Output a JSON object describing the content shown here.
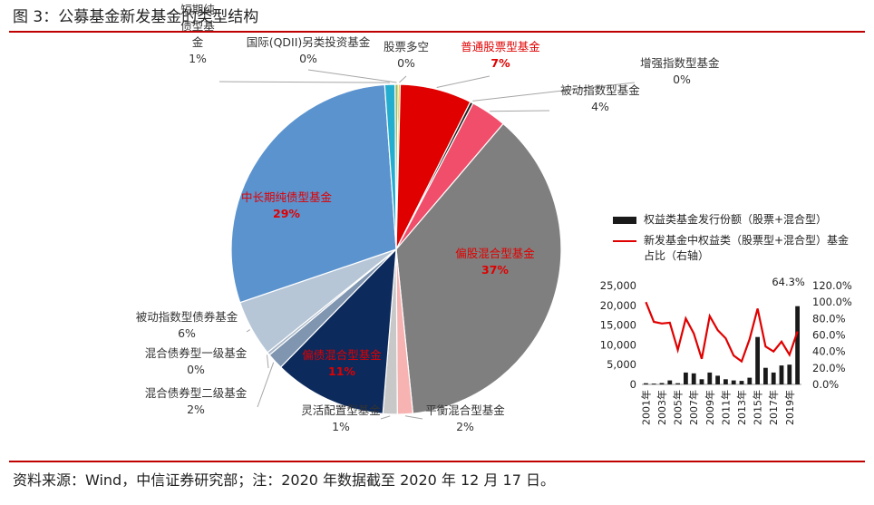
{
  "figure_title": "图 3：公募基金新发基金的类型结构",
  "footnote": "资料来源：Wind，中信证券研究部；注：2020 年数据截至 2020 年 12 月 17 日。",
  "chart_data": [
    {
      "type": "pie",
      "title": "",
      "slices": [
        {
          "label": "股票多空",
          "label_lines": [
            "股票多空"
          ],
          "pct_label": "0%",
          "value": 0.2,
          "color": "#d9b200",
          "label_color": "#333333"
        },
        {
          "label": "普通股票型基金",
          "label_lines": [
            "普通股票型基金"
          ],
          "pct_label": "7%",
          "value": 7,
          "color": "#e00000",
          "label_color": "#e00000"
        },
        {
          "label": "增强指数型基金",
          "label_lines": [
            "增强指数型基金"
          ],
          "pct_label": "0%",
          "value": 0.3,
          "color": "#222222",
          "label_color": "#333333"
        },
        {
          "label": "被动指数型基金",
          "label_lines": [
            "被动指数型基金"
          ],
          "pct_label": "4%",
          "value": 3.5,
          "color": "#f04e6a",
          "label_color": "#333333"
        },
        {
          "label": "偏股混合型基金",
          "label_lines": [
            "偏股混合型基金"
          ],
          "pct_label": "37%",
          "value": 37,
          "color": "#7f7f7f",
          "label_color": "#e00000"
        },
        {
          "label": "平衡混合型基金",
          "label_lines": [
            "平衡混合型基金"
          ],
          "pct_label": "2%",
          "value": 1.5,
          "color": "#f7b2b2",
          "label_color": "#333333"
        },
        {
          "label": "灵活配置型基金",
          "label_lines": [
            "灵活配置型基金"
          ],
          "pct_label": "1%",
          "value": 1.4,
          "color": "#c8c8c8",
          "label_color": "#333333"
        },
        {
          "label": "偏债混合型基金",
          "label_lines": [
            "偏债混合型基金"
          ],
          "pct_label": "11%",
          "value": 11,
          "color": "#0c2a5c",
          "label_color": "#e00000"
        },
        {
          "label": "混合债券型二级基金",
          "label_lines": [
            "混合债券型二级基金"
          ],
          "pct_label": "2%",
          "value": 1.6,
          "color": "#7f95b0",
          "label_color": "#333333"
        },
        {
          "label": "混合债券型一级基金",
          "label_lines": [
            "混合债券型一级基金"
          ],
          "pct_label": "0%",
          "value": 0.3,
          "color": "#a9b8c8",
          "label_color": "#333333"
        },
        {
          "label": "被动指数型债券基金",
          "label_lines": [
            "被动指数型债券基金"
          ],
          "pct_label": "6%",
          "value": 5.5,
          "color": "#b6c6d6",
          "label_color": "#333333"
        },
        {
          "label": "中长期纯债型基金",
          "label_lines": [
            "中长期纯债型基金"
          ],
          "pct_label": "29%",
          "value": 29,
          "color": "#5b93cf",
          "label_color": "#e00000"
        },
        {
          "label": "短期纯债型基金",
          "label_lines": [
            "短期纯",
            "债型基",
            "金"
          ],
          "pct_label": "1%",
          "value": 1.0,
          "color": "#23aed0",
          "label_color": "#333333"
        },
        {
          "label": "国际(QDII)另类投资基金",
          "label_lines": [
            "国际(QDII)另类投资基金"
          ],
          "pct_label": "0%",
          "value": 0.3,
          "color": "#9bbb59",
          "label_color": "#333333"
        }
      ]
    },
    {
      "type": "bar+line",
      "title": "",
      "categories": [
        "2001年",
        "2002年",
        "2003年",
        "2004年",
        "2005年",
        "2006年",
        "2007年",
        "2008年",
        "2009年",
        "2010年",
        "2011年",
        "2012年",
        "2013年",
        "2014年",
        "2015年",
        "2016年",
        "2017年",
        "2018年",
        "2019年",
        "2020年"
      ],
      "x_tick_labels": [
        "2001年",
        "2003年",
        "2005年",
        "2007年",
        "2009年",
        "2011年",
        "2013年",
        "2015年",
        "2017年",
        "2019年"
      ],
      "series": [
        {
          "name": "权益类基金发行份额（股票+混合型）",
          "type": "bar",
          "axis": "left",
          "values": [
            300,
            200,
            350,
            1000,
            300,
            3000,
            2800,
            1300,
            3000,
            2200,
            1300,
            1000,
            900,
            1700,
            12000,
            4200,
            3000,
            4800,
            5000,
            19800
          ]
        },
        {
          "name": "新发基金中权益类（股票型+混合型）基金占比（右轴）",
          "type": "line",
          "axis": "right",
          "values": [
            100,
            76,
            74,
            75,
            42,
            80,
            62,
            31,
            83,
            66,
            56,
            35,
            28,
            55,
            92,
            46,
            40,
            52,
            36,
            64.3
          ]
        }
      ],
      "y_left": {
        "min": 0,
        "max": 25000,
        "ticks": [
          "0",
          "5,000",
          "10,000",
          "15,000",
          "20,000",
          "25,000"
        ]
      },
      "y_right": {
        "min": 0,
        "max": 120,
        "ticks": [
          "0.0%",
          "20.0%",
          "40.0%",
          "60.0%",
          "80.0%",
          "100.0%",
          "120.0%"
        ]
      },
      "annotation": "64.3%",
      "legend_position": "top"
    }
  ]
}
